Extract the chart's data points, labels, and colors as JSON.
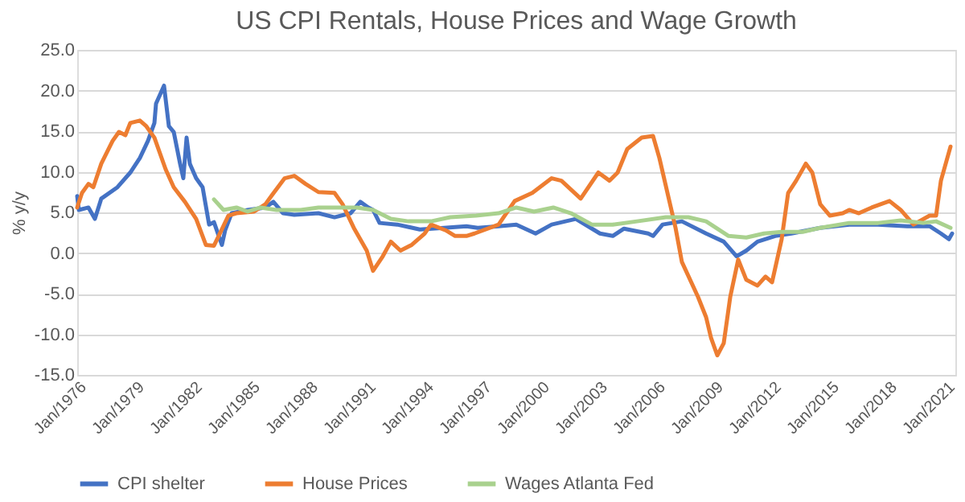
{
  "chart_data": {
    "type": "line",
    "title": "US CPI Rentals, House Prices and Wage Growth",
    "ylabel": "% y/y",
    "xlim": [
      "1976-01",
      "2021-07"
    ],
    "xticks": [
      {
        "value": "1976-01",
        "label": "Jan/1976"
      },
      {
        "value": "1979-01",
        "label": "Jan/1979"
      },
      {
        "value": "1982-01",
        "label": "Jan/1982"
      },
      {
        "value": "1985-01",
        "label": "Jan/1985"
      },
      {
        "value": "1988-01",
        "label": "Jan/1988"
      },
      {
        "value": "1991-01",
        "label": "Jan/1991"
      },
      {
        "value": "1994-01",
        "label": "Jan/1994"
      },
      {
        "value": "1997-01",
        "label": "Jan/1997"
      },
      {
        "value": "2000-01",
        "label": "Jan/2000"
      },
      {
        "value": "2003-01",
        "label": "Jan/2003"
      },
      {
        "value": "2006-01",
        "label": "Jan/2006"
      },
      {
        "value": "2009-01",
        "label": "Jan/2009"
      },
      {
        "value": "2012-01",
        "label": "Jan/2012"
      },
      {
        "value": "2015-01",
        "label": "Jan/2015"
      },
      {
        "value": "2018-01",
        "label": "Jan/2018"
      },
      {
        "value": "2021-01",
        "label": "Jan/2021"
      }
    ],
    "ylim": [
      -15,
      25
    ],
    "yticks": [
      {
        "value": -15,
        "label": "-15.0"
      },
      {
        "value": -10,
        "label": "-10.0"
      },
      {
        "value": -5,
        "label": "-5.0"
      },
      {
        "value": 0,
        "label": "0.0"
      },
      {
        "value": 5,
        "label": "5.0"
      },
      {
        "value": 10,
        "label": "10.0"
      },
      {
        "value": 15,
        "label": "15.0"
      },
      {
        "value": 20,
        "label": "20.0"
      },
      {
        "value": 25,
        "label": "25.0"
      }
    ],
    "grid": "y",
    "legend": "bottom",
    "line_style": "solid",
    "marker": "none",
    "series": [
      {
        "name": "CPI shelter",
        "color": "#4472c4",
        "x": [
          "1976-01",
          "1976-02",
          "1976-08",
          "1976-12",
          "1977-04",
          "1978-02",
          "1978-10",
          "1979-04",
          "1979-09",
          "1980-01",
          "1980-02",
          "1980-07",
          "1980-10",
          "1981-01",
          "1981-05",
          "1981-07",
          "1981-09",
          "1981-11",
          "1982-03",
          "1982-07",
          "1982-11",
          "1983-02",
          "1983-07",
          "1983-09",
          "1984-01",
          "1984-11",
          "1985-10",
          "1986-03",
          "1986-09",
          "1987-04",
          "1988-07",
          "1989-05",
          "1990-03",
          "1990-09",
          "1991-02",
          "1991-05",
          "1991-09",
          "1992-08",
          "1993-10",
          "1995-01",
          "1996-03",
          "1996-10",
          "1997-11",
          "1998-10",
          "1999-10",
          "2000-08",
          "2001-11",
          "2003-02",
          "2003-10",
          "2004-05",
          "2005-08",
          "2005-11",
          "2006-05",
          "2007-05",
          "2008-08",
          "2009-07",
          "2010-03",
          "2010-09",
          "2011-04",
          "2012-03",
          "2013-01",
          "2014-07",
          "2016-01",
          "2017-07",
          "2019-01",
          "2020-03",
          "2020-10",
          "2021-03",
          "2021-05"
        ],
        "values": [
          7.0,
          5.3,
          5.6,
          4.2,
          6.7,
          8.1,
          9.9,
          11.7,
          13.8,
          16.0,
          18.4,
          20.6,
          15.6,
          14.9,
          11.0,
          9.2,
          14.2,
          11.0,
          9.2,
          8.1,
          3.5,
          3.8,
          1.0,
          2.8,
          4.9,
          5.3,
          5.6,
          6.3,
          4.9,
          4.7,
          4.9,
          4.4,
          4.9,
          6.3,
          5.6,
          5.3,
          3.7,
          3.5,
          2.9,
          3.1,
          3.3,
          3.1,
          3.3,
          3.5,
          2.4,
          3.5,
          4.2,
          2.4,
          2.1,
          3.0,
          2.4,
          2.1,
          3.5,
          3.9,
          2.4,
          1.4,
          -0.4,
          0.3,
          1.4,
          2.1,
          2.4,
          3.1,
          3.5,
          3.5,
          3.3,
          3.3,
          2.4,
          1.7,
          2.4
        ]
      },
      {
        "name": "House Prices",
        "color": "#ed7d31",
        "x": [
          "1976-01",
          "1976-04",
          "1976-08",
          "1976-11",
          "1977-04",
          "1977-11",
          "1978-03",
          "1978-07",
          "1978-10",
          "1979-04",
          "1979-08",
          "1980-01",
          "1980-08",
          "1981-01",
          "1981-08",
          "1982-03",
          "1982-09",
          "1983-02",
          "1983-05",
          "1983-11",
          "1984-04",
          "1985-03",
          "1985-10",
          "1986-02",
          "1986-10",
          "1987-04",
          "1987-11",
          "1988-07",
          "1989-05",
          "1989-10",
          "1990-05",
          "1991-01",
          "1991-05",
          "1991-11",
          "1992-04",
          "1992-10",
          "1993-05",
          "1994-01",
          "1994-05",
          "1995-02",
          "1995-08",
          "1996-03",
          "1996-08",
          "1997-11",
          "1998-09",
          "1999-08",
          "2000-08",
          "2001-02",
          "2002-02",
          "2003-01",
          "2003-08",
          "2004-01",
          "2004-07",
          "2005-04",
          "2005-11",
          "2006-03",
          "2007-01",
          "2007-05",
          "2008-03",
          "2008-08",
          "2008-11",
          "2009-03",
          "2009-07",
          "2009-11",
          "2010-04",
          "2010-09",
          "2011-04",
          "2011-09",
          "2012-01",
          "2012-07",
          "2012-11",
          "2013-04",
          "2013-10",
          "2014-02",
          "2014-07",
          "2015-01",
          "2015-09",
          "2016-01",
          "2016-07",
          "2017-03",
          "2018-02",
          "2018-09",
          "2019-05",
          "2020-03",
          "2020-07",
          "2020-10",
          "2021-04"
        ],
        "values": [
          5.6,
          7.4,
          8.5,
          8.1,
          11.0,
          13.8,
          14.9,
          14.5,
          16.0,
          16.3,
          15.6,
          14.2,
          10.3,
          8.1,
          6.3,
          4.2,
          1.0,
          0.9,
          2.1,
          4.6,
          4.9,
          5.1,
          6.0,
          7.1,
          9.2,
          9.5,
          8.5,
          7.5,
          7.4,
          6.0,
          3.1,
          0.3,
          -2.2,
          -0.4,
          1.4,
          0.3,
          1.0,
          2.4,
          3.5,
          2.8,
          2.1,
          2.1,
          2.4,
          3.5,
          6.4,
          7.4,
          9.2,
          8.9,
          6.7,
          9.9,
          8.9,
          9.9,
          12.8,
          14.2,
          14.4,
          11.7,
          3.1,
          -1.1,
          -5.4,
          -7.9,
          -10.4,
          -12.6,
          -11.1,
          -5.4,
          -0.8,
          -3.3,
          -4.0,
          -2.9,
          -3.6,
          1.7,
          7.4,
          8.9,
          11.0,
          9.9,
          6.0,
          4.6,
          4.9,
          5.3,
          4.9,
          5.6,
          6.4,
          5.3,
          3.5,
          4.6,
          4.6,
          8.9,
          13.1
        ]
      },
      {
        "name": "Wages Atlanta Fed",
        "color": "#a9d18e",
        "x": [
          "1983-02",
          "1983-08",
          "1984-04",
          "1984-11",
          "1985-07",
          "1986-05",
          "1987-08",
          "1988-07",
          "1989-09",
          "1990-07",
          "1991-05",
          "1992-04",
          "1993-03",
          "1994-05",
          "1995-05",
          "1996-09",
          "1997-11",
          "1998-10",
          "1999-09",
          "2000-09",
          "2001-08",
          "2002-09",
          "2003-10",
          "2005-01",
          "2006-07",
          "2007-09",
          "2008-08",
          "2009-10",
          "2010-09",
          "2011-08",
          "2012-07",
          "2013-08",
          "2014-07",
          "2016-01",
          "2017-07",
          "2018-09",
          "2019-11",
          "2020-07",
          "2021-04"
        ],
        "values": [
          6.6,
          5.3,
          5.6,
          5.1,
          5.6,
          5.3,
          5.3,
          5.6,
          5.6,
          5.6,
          5.3,
          4.2,
          3.9,
          3.9,
          4.4,
          4.6,
          4.9,
          5.6,
          5.1,
          5.6,
          4.9,
          3.5,
          3.5,
          3.9,
          4.4,
          4.4,
          3.9,
          2.1,
          1.9,
          2.4,
          2.6,
          2.6,
          3.1,
          3.7,
          3.7,
          4.0,
          3.7,
          3.9,
          3.1
        ]
      }
    ]
  }
}
